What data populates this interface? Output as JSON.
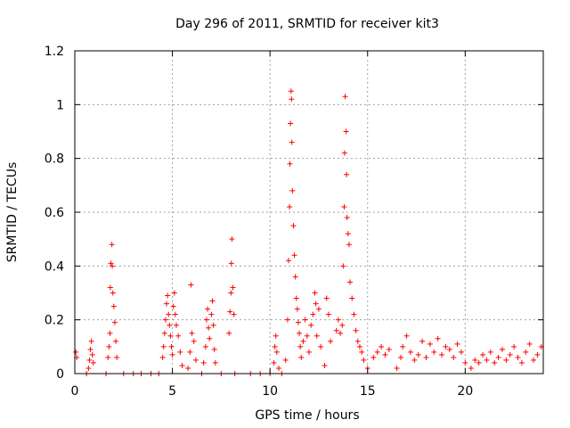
{
  "chart_data": {
    "type": "scatter",
    "title": "Day 296 of 2011, SRMTID for receiver kit3",
    "xlabel": "GPS time / hours",
    "ylabel": "SRMTID / TECUs",
    "xlim": [
      0,
      24
    ],
    "ylim": [
      0,
      1.2
    ],
    "xticks": [
      0,
      5,
      10,
      15,
      20
    ],
    "xtick_labels": [
      "0",
      "5",
      "10",
      "15",
      "20"
    ],
    "yticks": [
      0,
      0.2,
      0.4,
      0.6,
      0.8,
      1.0,
      1.2
    ],
    "ytick_labels": [
      "0",
      "0.2",
      "0.4",
      "0.6",
      "0.8",
      "1",
      "1.2"
    ],
    "grid": true,
    "marker": "+",
    "series": [
      {
        "name": "SRMTID",
        "color": "#ff0000",
        "points": [
          [
            0.05,
            0.08
          ],
          [
            0.1,
            0.06
          ],
          [
            0.6,
            0.0
          ],
          [
            0.7,
            0.02
          ],
          [
            0.75,
            0.05
          ],
          [
            0.8,
            0.09
          ],
          [
            0.85,
            0.12
          ],
          [
            0.9,
            0.07
          ],
          [
            0.95,
            0.04
          ],
          [
            1.6,
            0.0
          ],
          [
            1.7,
            0.06
          ],
          [
            1.75,
            0.1
          ],
          [
            1.8,
            0.15
          ],
          [
            1.82,
            0.32
          ],
          [
            1.85,
            0.41
          ],
          [
            1.9,
            0.48
          ],
          [
            1.92,
            0.4
          ],
          [
            1.95,
            0.3
          ],
          [
            2.0,
            0.25
          ],
          [
            2.05,
            0.19
          ],
          [
            2.1,
            0.12
          ],
          [
            2.15,
            0.06
          ],
          [
            2.5,
            0.0
          ],
          [
            3.0,
            0.0
          ],
          [
            3.4,
            0.0
          ],
          [
            3.9,
            0.0
          ],
          [
            4.3,
            0.0
          ],
          [
            4.5,
            0.06
          ],
          [
            4.55,
            0.1
          ],
          [
            4.6,
            0.15
          ],
          [
            4.65,
            0.2
          ],
          [
            4.7,
            0.26
          ],
          [
            4.75,
            0.29
          ],
          [
            4.8,
            0.22
          ],
          [
            4.85,
            0.18
          ],
          [
            4.9,
            0.14
          ],
          [
            4.95,
            0.1
          ],
          [
            5.0,
            0.07
          ],
          [
            5.05,
            0.25
          ],
          [
            5.1,
            0.3
          ],
          [
            5.15,
            0.22
          ],
          [
            5.2,
            0.18
          ],
          [
            5.3,
            0.14
          ],
          [
            5.4,
            0.08
          ],
          [
            5.5,
            0.03
          ],
          [
            5.8,
            0.02
          ],
          [
            5.9,
            0.08
          ],
          [
            5.95,
            0.33
          ],
          [
            6.0,
            0.15
          ],
          [
            6.1,
            0.12
          ],
          [
            6.2,
            0.05
          ],
          [
            6.5,
            0.0
          ],
          [
            6.6,
            0.04
          ],
          [
            6.7,
            0.1
          ],
          [
            6.75,
            0.2
          ],
          [
            6.8,
            0.24
          ],
          [
            6.85,
            0.17
          ],
          [
            6.9,
            0.13
          ],
          [
            7.0,
            0.22
          ],
          [
            7.05,
            0.27
          ],
          [
            7.1,
            0.18
          ],
          [
            7.15,
            0.09
          ],
          [
            7.2,
            0.04
          ],
          [
            7.5,
            0.0
          ],
          [
            7.9,
            0.15
          ],
          [
            7.95,
            0.23
          ],
          [
            8.0,
            0.3
          ],
          [
            8.02,
            0.41
          ],
          [
            8.05,
            0.5
          ],
          [
            8.1,
            0.32
          ],
          [
            8.15,
            0.22
          ],
          [
            8.2,
            0.0
          ],
          [
            9.0,
            0.0
          ],
          [
            9.5,
            0.0
          ],
          [
            10.0,
            0.0
          ],
          [
            10.2,
            0.04
          ],
          [
            10.25,
            0.1
          ],
          [
            10.3,
            0.14
          ],
          [
            10.35,
            0.08
          ],
          [
            10.45,
            0.02
          ],
          [
            10.6,
            0.0
          ],
          [
            10.8,
            0.05
          ],
          [
            10.9,
            0.2
          ],
          [
            10.95,
            0.42
          ],
          [
            11.0,
            0.62
          ],
          [
            11.02,
            0.78
          ],
          [
            11.05,
            0.93
          ],
          [
            11.08,
            1.05
          ],
          [
            11.1,
            1.02
          ],
          [
            11.12,
            0.86
          ],
          [
            11.15,
            0.68
          ],
          [
            11.2,
            0.55
          ],
          [
            11.25,
            0.44
          ],
          [
            11.3,
            0.36
          ],
          [
            11.35,
            0.28
          ],
          [
            11.4,
            0.24
          ],
          [
            11.45,
            0.19
          ],
          [
            11.5,
            0.15
          ],
          [
            11.55,
            0.1
          ],
          [
            11.6,
            0.06
          ],
          [
            11.7,
            0.12
          ],
          [
            11.8,
            0.2
          ],
          [
            11.9,
            0.14
          ],
          [
            12.0,
            0.08
          ],
          [
            12.1,
            0.18
          ],
          [
            12.2,
            0.22
          ],
          [
            12.3,
            0.3
          ],
          [
            12.35,
            0.26
          ],
          [
            12.4,
            0.14
          ],
          [
            12.5,
            0.24
          ],
          [
            12.6,
            0.1
          ],
          [
            12.8,
            0.03
          ],
          [
            12.9,
            0.28
          ],
          [
            13.0,
            0.22
          ],
          [
            13.1,
            0.12
          ],
          [
            13.4,
            0.16
          ],
          [
            13.5,
            0.2
          ],
          [
            13.6,
            0.15
          ],
          [
            13.7,
            0.18
          ],
          [
            13.75,
            0.4
          ],
          [
            13.8,
            0.62
          ],
          [
            13.82,
            0.82
          ],
          [
            13.85,
            1.03
          ],
          [
            13.9,
            0.9
          ],
          [
            13.92,
            0.74
          ],
          [
            13.95,
            0.58
          ],
          [
            14.0,
            0.52
          ],
          [
            14.05,
            0.48
          ],
          [
            14.1,
            0.34
          ],
          [
            14.2,
            0.28
          ],
          [
            14.3,
            0.22
          ],
          [
            14.4,
            0.16
          ],
          [
            14.5,
            0.12
          ],
          [
            14.6,
            0.1
          ],
          [
            14.7,
            0.08
          ],
          [
            14.8,
            0.05
          ],
          [
            15.0,
            0.02
          ],
          [
            15.3,
            0.06
          ],
          [
            15.5,
            0.08
          ],
          [
            15.7,
            0.1
          ],
          [
            15.9,
            0.07
          ],
          [
            16.1,
            0.09
          ],
          [
            16.5,
            0.02
          ],
          [
            16.7,
            0.06
          ],
          [
            16.8,
            0.1
          ],
          [
            17.0,
            0.14
          ],
          [
            17.2,
            0.08
          ],
          [
            17.4,
            0.05
          ],
          [
            17.6,
            0.07
          ],
          [
            17.8,
            0.12
          ],
          [
            18.0,
            0.06
          ],
          [
            18.2,
            0.11
          ],
          [
            18.4,
            0.08
          ],
          [
            18.6,
            0.13
          ],
          [
            18.8,
            0.07
          ],
          [
            19.0,
            0.1
          ],
          [
            19.2,
            0.09
          ],
          [
            19.4,
            0.06
          ],
          [
            19.6,
            0.11
          ],
          [
            19.8,
            0.08
          ],
          [
            20.0,
            0.04
          ],
          [
            20.3,
            0.02
          ],
          [
            20.5,
            0.05
          ],
          [
            20.7,
            0.04
          ],
          [
            20.9,
            0.07
          ],
          [
            21.1,
            0.05
          ],
          [
            21.3,
            0.08
          ],
          [
            21.5,
            0.04
          ],
          [
            21.7,
            0.06
          ],
          [
            21.9,
            0.09
          ],
          [
            22.1,
            0.05
          ],
          [
            22.3,
            0.07
          ],
          [
            22.5,
            0.1
          ],
          [
            22.7,
            0.06
          ],
          [
            22.9,
            0.04
          ],
          [
            23.1,
            0.08
          ],
          [
            23.3,
            0.11
          ],
          [
            23.5,
            0.05
          ],
          [
            23.7,
            0.07
          ],
          [
            23.9,
            0.1
          ]
        ]
      }
    ]
  }
}
